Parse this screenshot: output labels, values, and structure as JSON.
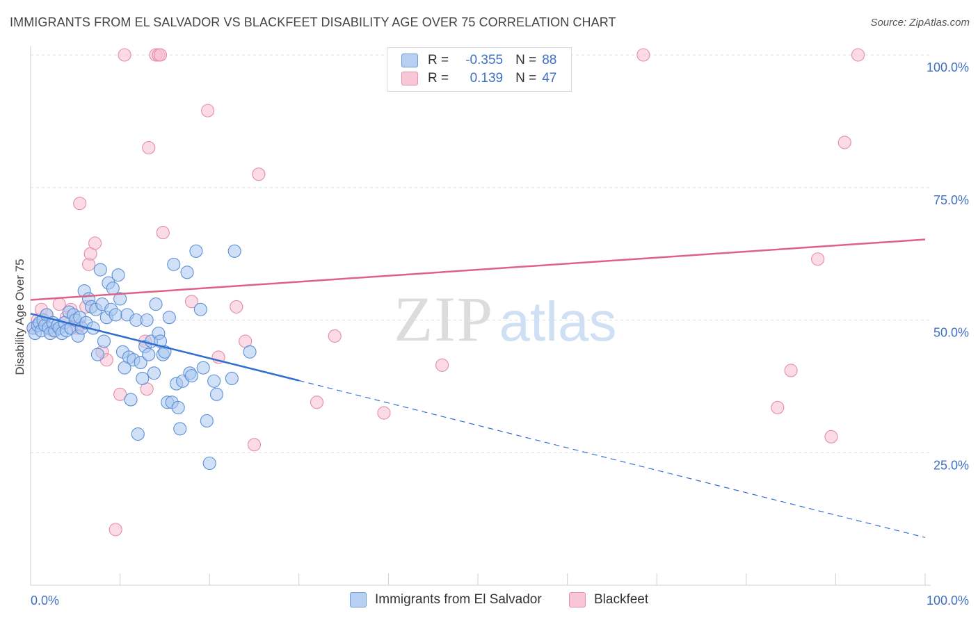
{
  "title": "IMMIGRANTS FROM EL SALVADOR VS BLACKFEET DISABILITY AGE OVER 75 CORRELATION CHART",
  "source": "Source: ZipAtlas.com",
  "watermark": {
    "zip": "ZIP",
    "atlas": "atlas"
  },
  "colors": {
    "blue_fill": "#a9c8f0",
    "blue_stroke": "#5b8fd6",
    "blue_line": "#2f6fcf",
    "pink_fill": "#f7bfd2",
    "pink_stroke": "#e58aa8",
    "pink_line": "#e0608c",
    "tick_text": "#3f6fc4"
  },
  "legend": {
    "rows": [
      {
        "r_label": "R =",
        "r_value": "-0.355",
        "n_label": "N =",
        "n_value": "88"
      },
      {
        "r_label": "R =",
        "r_value": "0.139",
        "n_label": "N =",
        "n_value": "47"
      }
    ]
  },
  "bottom_legend": {
    "series1": "Immigrants from El Salvador",
    "series2": "Blackfeet"
  },
  "chart_data": {
    "type": "scatter",
    "xlabel": "",
    "ylabel": "Disability Age Over 75",
    "xlim": [
      0,
      100
    ],
    "ylim": [
      0,
      100
    ],
    "x_tick_labels": [
      "0.0%",
      "100.0%"
    ],
    "y_tick_labels": [
      "25.0%",
      "50.0%",
      "75.0%",
      "100.0%"
    ],
    "y_ticks": [
      25,
      50,
      75,
      100
    ],
    "grid": true,
    "legend_position": "top-center",
    "series": [
      {
        "name": "Immigrants from El Salvador",
        "r": -0.355,
        "n": 88,
        "trend": {
          "x0": 0,
          "y0": 51.2,
          "x1": 30,
          "y1": 38.6,
          "x_dash_end": 100,
          "y_dash_end": 9.0
        },
        "points": [
          [
            0.3,
            48.5
          ],
          [
            0.5,
            47.5
          ],
          [
            0.8,
            49
          ],
          [
            1,
            49.5
          ],
          [
            1.2,
            48
          ],
          [
            1.4,
            50
          ],
          [
            1.6,
            49
          ],
          [
            1.8,
            51
          ],
          [
            2,
            48.5
          ],
          [
            2.2,
            47.5
          ],
          [
            2.5,
            49.5
          ],
          [
            2.7,
            48
          ],
          [
            3,
            49
          ],
          [
            3.2,
            48.5
          ],
          [
            3.5,
            47.5
          ],
          [
            3.8,
            49.5
          ],
          [
            4,
            48
          ],
          [
            4.3,
            51.5
          ],
          [
            4.5,
            48.5
          ],
          [
            4.8,
            51
          ],
          [
            5,
            50
          ],
          [
            5.3,
            47
          ],
          [
            5.5,
            50.5
          ],
          [
            5.7,
            48.5
          ],
          [
            6,
            55.5
          ],
          [
            6.2,
            49.5
          ],
          [
            6.5,
            54
          ],
          [
            6.8,
            52.5
          ],
          [
            7,
            48.5
          ],
          [
            7.3,
            52
          ],
          [
            7.5,
            43.5
          ],
          [
            7.8,
            59.5
          ],
          [
            8,
            53
          ],
          [
            8.2,
            46
          ],
          [
            8.5,
            50.5
          ],
          [
            8.7,
            57
          ],
          [
            9,
            52
          ],
          [
            9.2,
            56
          ],
          [
            9.5,
            51
          ],
          [
            9.8,
            58.5
          ],
          [
            10,
            54
          ],
          [
            10.3,
            44
          ],
          [
            10.5,
            41
          ],
          [
            10.8,
            51
          ],
          [
            11,
            43
          ],
          [
            11.2,
            35
          ],
          [
            11.5,
            42.5
          ],
          [
            11.8,
            50
          ],
          [
            12,
            28.5
          ],
          [
            12.3,
            42
          ],
          [
            12.5,
            39
          ],
          [
            12.8,
            45
          ],
          [
            13,
            50
          ],
          [
            13.2,
            43.5
          ],
          [
            13.5,
            46
          ],
          [
            13.8,
            40
          ],
          [
            14,
            53
          ],
          [
            14.3,
            47.5
          ],
          [
            14.5,
            46
          ],
          [
            14.8,
            43.5
          ],
          [
            15,
            44
          ],
          [
            15.3,
            34.5
          ],
          [
            15.5,
            50.5
          ],
          [
            15.8,
            34.5
          ],
          [
            16,
            60.5
          ],
          [
            16.3,
            38
          ],
          [
            16.5,
            33.5
          ],
          [
            16.7,
            29.5
          ],
          [
            17,
            38.5
          ],
          [
            17.5,
            59
          ],
          [
            17.8,
            40
          ],
          [
            18,
            39.5
          ],
          [
            18.5,
            63
          ],
          [
            19,
            52
          ],
          [
            19.3,
            41
          ],
          [
            19.7,
            31
          ],
          [
            20,
            23
          ],
          [
            20.5,
            38.5
          ],
          [
            20.8,
            36
          ],
          [
            22.5,
            39
          ],
          [
            22.8,
            63
          ],
          [
            24.5,
            44
          ]
        ]
      },
      {
        "name": "Blackfeet",
        "r": 0.139,
        "n": 47,
        "trend": {
          "x0": 0,
          "y0": 53.8,
          "x1": 100,
          "y1": 65.2
        },
        "points": [
          [
            0.3,
            48.5
          ],
          [
            0.8,
            50
          ],
          [
            1.2,
            52
          ],
          [
            1.8,
            51
          ],
          [
            2.5,
            48
          ],
          [
            3.2,
            53
          ],
          [
            4,
            50.5
          ],
          [
            4.5,
            52
          ],
          [
            5.2,
            48.5
          ],
          [
            5.5,
            49
          ],
          [
            5.5,
            72
          ],
          [
            6.2,
            52.5
          ],
          [
            6.5,
            60.5
          ],
          [
            6.7,
            62.5
          ],
          [
            7.2,
            64.5
          ],
          [
            8,
            44
          ],
          [
            8.5,
            42.5
          ],
          [
            9.5,
            10.5
          ],
          [
            10,
            36
          ],
          [
            10.5,
            100
          ],
          [
            12.8,
            46
          ],
          [
            13,
            37
          ],
          [
            13.2,
            82.5
          ],
          [
            14,
            100
          ],
          [
            14.3,
            100
          ],
          [
            14.5,
            100
          ],
          [
            14.8,
            66.5
          ],
          [
            18,
            53.5
          ],
          [
            19.8,
            89.5
          ],
          [
            21,
            43
          ],
          [
            23,
            52.5
          ],
          [
            24,
            46
          ],
          [
            25,
            26.5
          ],
          [
            25.5,
            77.5
          ],
          [
            32,
            34.5
          ],
          [
            34,
            47
          ],
          [
            39.5,
            32.5
          ],
          [
            46,
            41.5
          ],
          [
            68.5,
            100
          ],
          [
            83.5,
            33.5
          ],
          [
            85,
            40.5
          ],
          [
            88,
            61.5
          ],
          [
            89.5,
            28
          ],
          [
            91,
            83.5
          ],
          [
            92.5,
            100
          ]
        ]
      }
    ]
  }
}
